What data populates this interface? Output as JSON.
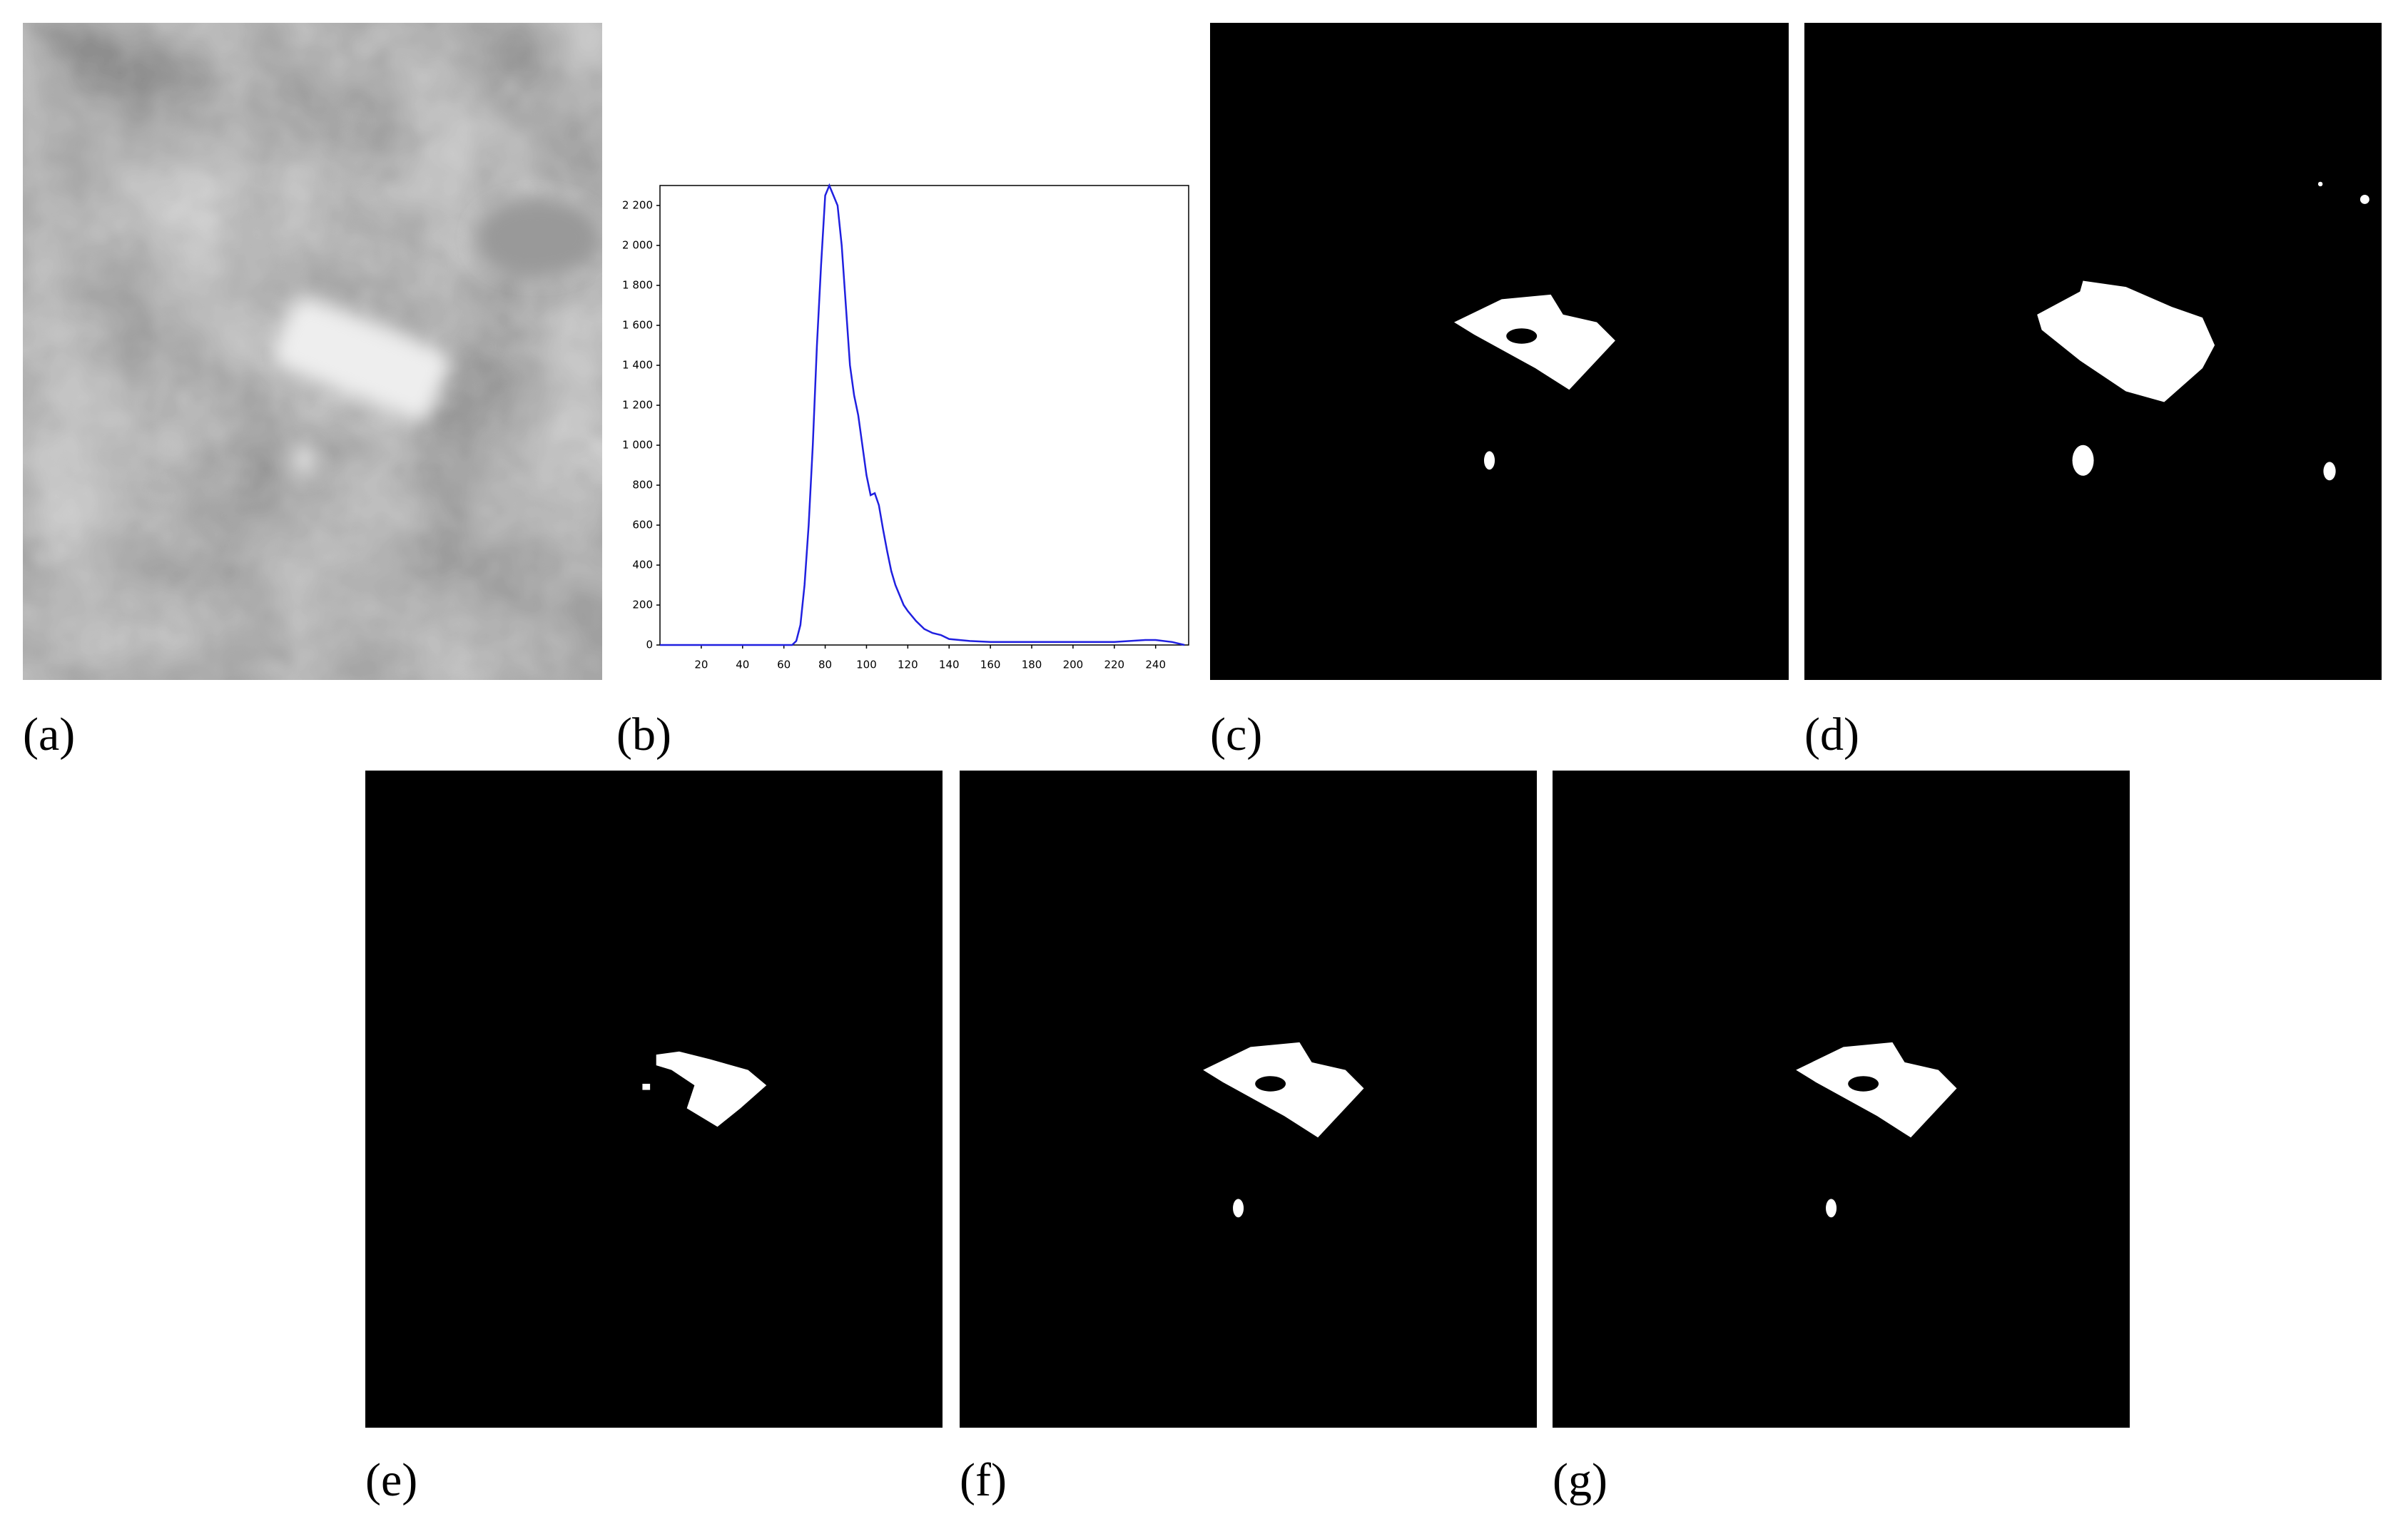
{
  "panel_labels": [
    "(a)",
    "(b)",
    "(c)",
    "(d)",
    "(e)",
    "(f)",
    "(g)"
  ],
  "chart_data": {
    "type": "line",
    "x": [
      0,
      20,
      40,
      60,
      64,
      66,
      68,
      70,
      72,
      74,
      76,
      78,
      80,
      82,
      84,
      86,
      88,
      90,
      92,
      94,
      96,
      98,
      100,
      102,
      104,
      106,
      108,
      110,
      112,
      114,
      116,
      118,
      120,
      124,
      128,
      132,
      136,
      140,
      150,
      160,
      180,
      200,
      220,
      235,
      240,
      248,
      254
    ],
    "series": [
      {
        "color": "#2020e0",
        "values": [
          0,
          0,
          0,
          0,
          0,
          20,
          100,
          300,
          600,
          1000,
          1500,
          1900,
          2250,
          2300,
          2250,
          2200,
          2000,
          1700,
          1400,
          1250,
          1150,
          1000,
          850,
          750,
          760,
          700,
          580,
          470,
          370,
          300,
          250,
          200,
          170,
          120,
          80,
          60,
          50,
          30,
          20,
          15,
          15,
          15,
          15,
          25,
          25,
          15,
          0
        ]
      }
    ],
    "xlim": [
      0,
      256
    ],
    "ylim": [
      0,
      2300
    ],
    "xticks": [
      20,
      40,
      60,
      80,
      100,
      120,
      140,
      160,
      180,
      200,
      220,
      240
    ],
    "yticks": [
      0,
      200,
      400,
      600,
      800,
      {
        "value": 1000,
        "label": "1 000"
      },
      {
        "value": 1200,
        "label": "1 200"
      },
      {
        "value": 1400,
        "label": "1 400"
      },
      {
        "value": 1600,
        "label": "1 600"
      },
      {
        "value": 1800,
        "label": "1 800"
      },
      {
        "value": 2000,
        "label": "2 000"
      },
      {
        "value": 2200,
        "label": "2 200"
      }
    ]
  }
}
